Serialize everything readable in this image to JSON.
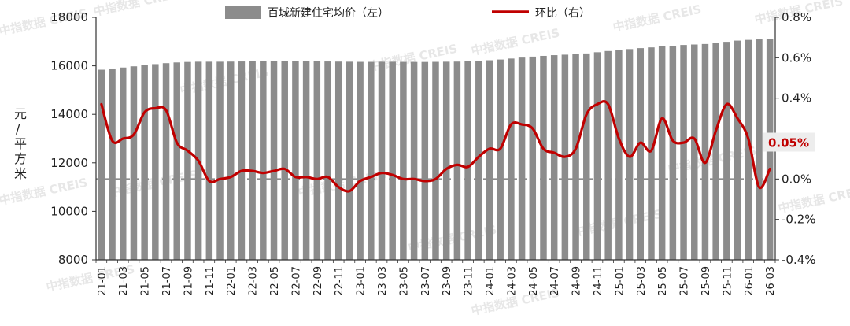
{
  "colors": {
    "bar": "#8c8c8c",
    "line": "#c00000",
    "axis": "#333333",
    "zero_line": "#8c8c8c",
    "tag_bg": "#ededed"
  },
  "watermark": "中指数据 CREIS",
  "chart_data": {
    "type": "bar+line",
    "title": "",
    "ylabel": "元/平方米",
    "y_left_lim": [
      8000,
      18000
    ],
    "y_left_ticks": [
      "18000",
      "16000",
      "14000",
      "12000",
      "10000",
      "8000"
    ],
    "y_right_lim": [
      -0.4,
      0.8
    ],
    "y_right_ticks": [
      "0.8%",
      "0.6%",
      "0.4%",
      "0.2%",
      "0.0%",
      "-0.2%",
      "-0.4%"
    ],
    "legend": [
      {
        "name": "百城新建住宅均价（左）",
        "kind": "bar"
      },
      {
        "name": "环比（右）",
        "kind": "line"
      }
    ],
    "categories": [
      "21-01",
      "21-02",
      "21-03",
      "21-04",
      "21-05",
      "21-06",
      "21-07",
      "21-08",
      "21-09",
      "21-10",
      "21-11",
      "21-12",
      "22-01",
      "22-02",
      "22-03",
      "22-04",
      "22-05",
      "22-06",
      "22-07",
      "22-08",
      "22-09",
      "22-10",
      "22-11",
      "22-12",
      "23-01",
      "23-02",
      "23-03",
      "23-04",
      "23-05",
      "23-06",
      "23-07",
      "23-08",
      "23-09",
      "23-10",
      "23-11",
      "23-12",
      "24-01",
      "24-02",
      "24-03",
      "24-04",
      "24-05",
      "24-06",
      "24-07",
      "24-08",
      "24-09",
      "24-10",
      "24-11",
      "24-12",
      "25-01",
      "25-02",
      "25-03",
      "25-04",
      "25-05",
      "25-06",
      "25-07",
      "25-08",
      "25-09",
      "25-10",
      "25-11",
      "25-12",
      "26-01",
      "26-02",
      "26-03"
    ],
    "x_tick_labels": [
      "21-01",
      "21-03",
      "21-05",
      "21-07",
      "21-09",
      "21-11",
      "22-01",
      "22-03",
      "22-05",
      "22-07",
      "22-09",
      "22-11",
      "23-01",
      "23-03",
      "23-05",
      "23-07",
      "23-09",
      "23-11",
      "24-01",
      "24-03",
      "24-05",
      "24-07",
      "24-09",
      "24-11",
      "25-01",
      "25-03",
      "25-05",
      "25-07",
      "25-09",
      "25-11",
      "26-01",
      "26-03"
    ],
    "series": [
      {
        "name": "百城新建住宅均价（左）",
        "type": "bar",
        "axis": "left",
        "values": [
          15840,
          15890,
          15930,
          15980,
          16030,
          16070,
          16110,
          16140,
          16160,
          16170,
          16170,
          16170,
          16175,
          16180,
          16185,
          16190,
          16195,
          16200,
          16195,
          16190,
          16185,
          16180,
          16175,
          16170,
          16165,
          16165,
          16170,
          16170,
          16165,
          16160,
          16160,
          16165,
          16170,
          16175,
          16185,
          16200,
          16230,
          16260,
          16300,
          16340,
          16380,
          16410,
          16440,
          16460,
          16480,
          16510,
          16560,
          16610,
          16650,
          16690,
          16730,
          16760,
          16800,
          16830,
          16860,
          16880,
          16900,
          16940,
          16990,
          17040,
          17070,
          17090,
          17100
        ]
      },
      {
        "name": "环比（右）",
        "type": "line",
        "axis": "right",
        "values": [
          0.37,
          0.19,
          0.2,
          0.22,
          0.33,
          0.35,
          0.34,
          0.18,
          0.14,
          0.09,
          -0.01,
          0.0,
          0.01,
          0.04,
          0.04,
          0.03,
          0.04,
          0.05,
          0.01,
          0.01,
          0.0,
          0.01,
          -0.04,
          -0.06,
          -0.01,
          0.01,
          0.03,
          0.02,
          0.0,
          0.0,
          -0.01,
          0.0,
          0.05,
          0.07,
          0.06,
          0.11,
          0.15,
          0.15,
          0.27,
          0.27,
          0.25,
          0.15,
          0.13,
          0.11,
          0.15,
          0.32,
          0.37,
          0.37,
          0.2,
          0.11,
          0.18,
          0.14,
          0.3,
          0.19,
          0.18,
          0.2,
          0.08,
          0.24,
          0.37,
          0.3,
          0.2,
          -0.04,
          0.05
        ]
      }
    ],
    "annotation": {
      "text": "0.05%",
      "series": "环比（右）",
      "category": "26-03"
    }
  }
}
